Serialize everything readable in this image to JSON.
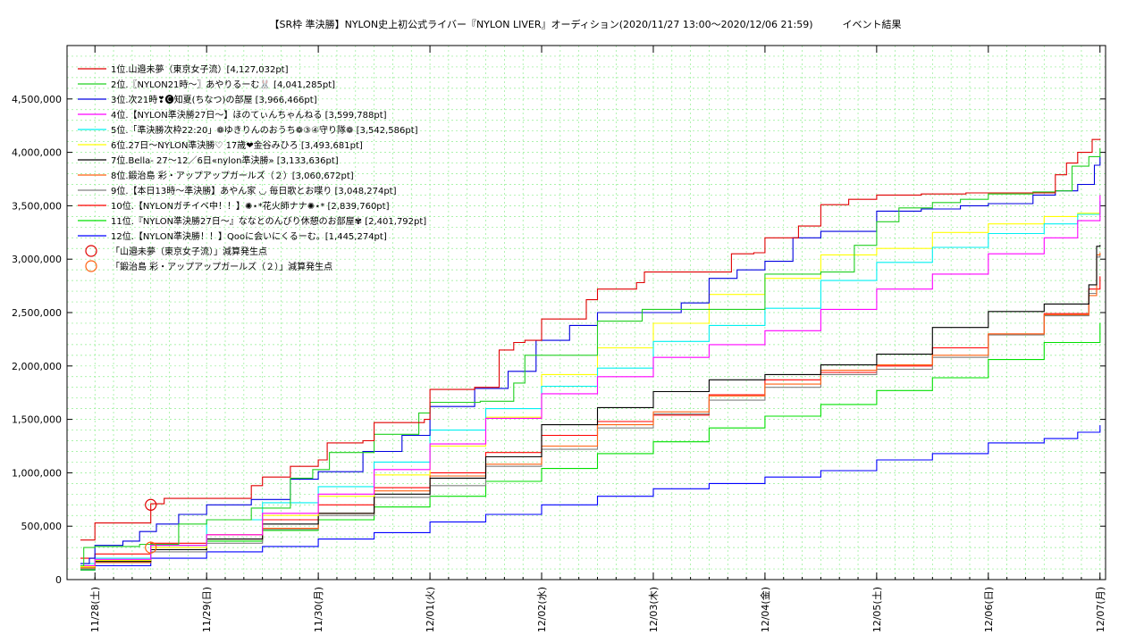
{
  "chart_data": {
    "type": "line",
    "title": "【SR枠 準決勝】NYLON史上初公式ライバー『NYLON LIVER』オーディション(2020/11/27 13:00〜2020/12/06 21:59)　　　イベント結果",
    "xlabel": "",
    "ylabel": "",
    "x_ticks": [
      "11/28(土)",
      "11/29(日)",
      "11/30(月)",
      "12/01(火)",
      "12/02(水)",
      "12/03(木)",
      "12/04(金)",
      "12/05(土)",
      "12/06(日)",
      "12/07(月)"
    ],
    "x_range_days": [
      -0.25,
      9.05
    ],
    "ylim": [
      0,
      5000000
    ],
    "y_ticks": [
      0,
      500000,
      1000000,
      1500000,
      2000000,
      2500000,
      3000000,
      3500000,
      4000000,
      4500000
    ],
    "y_tick_labels": [
      "0",
      "500,000",
      "1,000,000",
      "1,500,000",
      "2,000,000",
      "2,500,000",
      "3,000,000",
      "3,500,000",
      "4,000,000",
      "4,500,000"
    ],
    "grid": true,
    "legend_position": "top-left",
    "x_unit_note": "x values are days since 11/28 00:00",
    "series": [
      {
        "name": "1位.山邉未夢（東京女子流）[4,127,032pt]",
        "color": "#e00000",
        "x": [
          -0.13,
          -0.05,
          0.0,
          0.35,
          0.5,
          0.62,
          1.0,
          1.3,
          1.4,
          1.5,
          1.75,
          2.0,
          2.08,
          2.4,
          2.5,
          2.95,
          3.0,
          3.25,
          3.4,
          3.62,
          3.75,
          3.85,
          4.0,
          4.4,
          4.5,
          4.6,
          4.85,
          4.92,
          5.5,
          5.7,
          5.9,
          6.0,
          6.3,
          6.5,
          6.75,
          7.0,
          7.4,
          7.8,
          8.0,
          8.4,
          8.6,
          8.7,
          8.8,
          8.93,
          9.0
        ],
        "y": [
          370000,
          370000,
          530000,
          530000,
          710000,
          760000,
          760000,
          760000,
          880000,
          960000,
          1060000,
          1120000,
          1280000,
          1300000,
          1470000,
          1500000,
          1780000,
          1780000,
          1800000,
          2150000,
          2220000,
          2240000,
          2440000,
          2620000,
          2720000,
          2720000,
          2780000,
          2880000,
          2880000,
          3050000,
          3060000,
          3200000,
          3310000,
          3510000,
          3560000,
          3600000,
          3610000,
          3620000,
          3620000,
          3620000,
          3790000,
          3900000,
          4000000,
          4120000,
          4127032
        ]
      },
      {
        "name": "2位.〖NYLON21時〜〗あやりるーむ🐰 [4,041,285pt]",
        "color": "#20d020",
        "x": [
          -0.13,
          -0.1,
          0.0,
          0.4,
          0.75,
          1.0,
          1.4,
          1.75,
          1.95,
          2.1,
          2.5,
          2.9,
          3.0,
          3.45,
          3.75,
          3.85,
          4.5,
          4.9,
          5.5,
          6.0,
          6.4,
          6.5,
          6.8,
          7.0,
          7.2,
          7.5,
          7.75,
          8.0,
          8.4,
          8.6,
          8.75,
          8.9,
          9.0
        ],
        "y": [
          130000,
          300000,
          310000,
          330000,
          520000,
          560000,
          670000,
          950000,
          1030000,
          1190000,
          1360000,
          1560000,
          1660000,
          1670000,
          1840000,
          2100000,
          2420000,
          2530000,
          2530000,
          2860000,
          2860000,
          2880000,
          3130000,
          3350000,
          3480000,
          3530000,
          3560000,
          3610000,
          3630000,
          3640000,
          3870000,
          3960000,
          4041285
        ]
      },
      {
        "name": "3位.次21時❣🅒知夏(ちなつ)の部屋 [3,966,466pt]",
        "color": "#0000e0",
        "x": [
          -0.13,
          -0.05,
          0.0,
          0.25,
          0.4,
          0.55,
          0.75,
          1.0,
          1.4,
          1.75,
          2.0,
          2.4,
          2.75,
          3.0,
          3.4,
          3.7,
          3.95,
          4.25,
          4.5,
          4.9,
          5.25,
          5.5,
          5.75,
          6.0,
          6.25,
          6.5,
          7.0,
          7.4,
          7.75,
          8.0,
          8.4,
          8.6,
          8.8,
          8.95,
          9.0
        ],
        "y": [
          150000,
          200000,
          320000,
          360000,
          450000,
          520000,
          610000,
          700000,
          750000,
          940000,
          1010000,
          1200000,
          1350000,
          1620000,
          1790000,
          1950000,
          2240000,
          2380000,
          2500000,
          2500000,
          2590000,
          2820000,
          2900000,
          2980000,
          3200000,
          3260000,
          3450000,
          3470000,
          3500000,
          3520000,
          3600000,
          3640000,
          3700000,
          3880000,
          3966466
        ]
      },
      {
        "name": "4位.【NYLON準決勝27日〜】ほのてぃんちゃんねる [3,599,788pt]",
        "color": "#ff00ff",
        "x": [
          -0.13,
          0.0,
          0.5,
          1.0,
          1.5,
          2.0,
          2.5,
          3.0,
          3.5,
          4.0,
          4.5,
          5.0,
          5.5,
          6.0,
          6.5,
          7.0,
          7.5,
          8.0,
          8.5,
          8.8,
          9.0
        ],
        "y": [
          130000,
          190000,
          320000,
          420000,
          620000,
          800000,
          1030000,
          1270000,
          1510000,
          1740000,
          1900000,
          2080000,
          2200000,
          2330000,
          2530000,
          2720000,
          2860000,
          3050000,
          3200000,
          3360000,
          3599788
        ]
      },
      {
        "name": "5位.「準決勝次枠22:20」❁ゆきりんのおうち❁③④守り隊❁ [3,542,586pt]",
        "color": "#00f0f0",
        "x": [
          -0.13,
          0.0,
          0.5,
          1.0,
          1.5,
          2.0,
          2.5,
          3.0,
          3.5,
          4.0,
          4.5,
          5.0,
          5.5,
          6.0,
          6.5,
          7.0,
          7.5,
          8.0,
          8.5,
          8.8,
          9.0
        ],
        "y": [
          150000,
          200000,
          320000,
          560000,
          720000,
          870000,
          1100000,
          1400000,
          1600000,
          1810000,
          1980000,
          2230000,
          2380000,
          2540000,
          2800000,
          2970000,
          3110000,
          3240000,
          3330000,
          3420000,
          3542586
        ]
      },
      {
        "name": "6位.27日〜NYLON準決勝♡ 17歳❤金谷みひろ [3,493,681pt]",
        "color": "#ffff00",
        "x": [
          -0.13,
          0.0,
          0.5,
          1.0,
          1.5,
          2.0,
          2.5,
          3.0,
          3.5,
          4.0,
          4.5,
          5.0,
          5.5,
          6.0,
          6.5,
          7.0,
          7.5,
          8.0,
          8.5,
          8.8,
          9.0
        ],
        "y": [
          120000,
          180000,
          300000,
          420000,
          600000,
          780000,
          980000,
          1250000,
          1520000,
          1920000,
          2170000,
          2400000,
          2670000,
          2820000,
          3040000,
          3100000,
          3250000,
          3330000,
          3400000,
          3430000,
          3493681
        ]
      },
      {
        "name": "7位.Bella- 27〜12／6日«nylon準決勝» [3,133,636pt]",
        "color": "#000000",
        "x": [
          -0.13,
          0.0,
          0.5,
          1.0,
          1.5,
          2.0,
          2.5,
          3.0,
          3.5,
          4.0,
          4.5,
          5.0,
          5.5,
          6.0,
          6.5,
          7.0,
          7.5,
          8.0,
          8.5,
          8.9,
          8.97,
          9.0
        ],
        "y": [
          120000,
          170000,
          280000,
          380000,
          520000,
          620000,
          800000,
          950000,
          1150000,
          1450000,
          1610000,
          1760000,
          1870000,
          1920000,
          2010000,
          2110000,
          2360000,
          2510000,
          2580000,
          2760000,
          3120000,
          3133636
        ]
      },
      {
        "name": "8位.鍛治島 彩・アップアップガールズ（２）[3,060,672pt]",
        "color": "#ff6010",
        "x": [
          -0.13,
          0.0,
          0.5,
          1.0,
          1.5,
          2.0,
          2.5,
          3.0,
          3.5,
          4.0,
          4.5,
          5.0,
          5.5,
          6.0,
          6.5,
          7.0,
          7.5,
          8.0,
          8.5,
          8.9,
          8.97,
          9.0
        ],
        "y": [
          110000,
          160000,
          300000,
          380000,
          480000,
          620000,
          830000,
          970000,
          1080000,
          1250000,
          1450000,
          1570000,
          1720000,
          1830000,
          1960000,
          2010000,
          2100000,
          2300000,
          2480000,
          2660000,
          3040000,
          3060672
        ]
      },
      {
        "name": "9位.【本日13時〜準決勝】あやん家 ◡ 毎日歌とお喋り [3,048,274pt]",
        "color": "#808080",
        "x": [
          -0.13,
          0.0,
          0.5,
          1.0,
          1.5,
          2.0,
          2.5,
          3.0,
          3.5,
          4.0,
          4.5,
          5.0,
          5.5,
          6.0,
          6.5,
          7.0,
          7.5,
          8.0,
          8.5,
          8.9,
          8.97,
          9.0
        ],
        "y": [
          100000,
          160000,
          260000,
          340000,
          470000,
          600000,
          770000,
          880000,
          1060000,
          1220000,
          1420000,
          1550000,
          1680000,
          1800000,
          1920000,
          1970000,
          2080000,
          2290000,
          2470000,
          2680000,
          3020000,
          3048274
        ]
      },
      {
        "name": "10位.【NYLONガチイベ中！！】✺⋆*花火師ナナ✺⋆* [2,839,760pt]",
        "color": "#ff0000",
        "x": [
          -0.13,
          0.0,
          0.5,
          1.0,
          1.5,
          2.0,
          2.5,
          3.0,
          3.5,
          4.0,
          4.5,
          5.0,
          5.5,
          6.0,
          6.5,
          7.0,
          7.5,
          8.0,
          8.5,
          8.9,
          9.0
        ],
        "y": [
          200000,
          240000,
          340000,
          420000,
          560000,
          700000,
          860000,
          1000000,
          1190000,
          1350000,
          1480000,
          1540000,
          1730000,
          1870000,
          1940000,
          2000000,
          2170000,
          2300000,
          2490000,
          2720000,
          2839760
        ]
      },
      {
        "name": "11位.『NYLON準決勝27日〜』ななとのんびり休憩のお部屋✾ [2,401,792pt]",
        "color": "#00e000",
        "x": [
          -0.13,
          0.0,
          0.5,
          1.0,
          1.5,
          2.0,
          2.5,
          3.0,
          3.5,
          4.0,
          4.5,
          5.0,
          5.5,
          6.0,
          6.5,
          7.0,
          7.5,
          8.0,
          8.5,
          9.0
        ],
        "y": [
          90000,
          160000,
          280000,
          360000,
          460000,
          560000,
          680000,
          780000,
          920000,
          1040000,
          1180000,
          1290000,
          1420000,
          1530000,
          1640000,
          1770000,
          1890000,
          2060000,
          2220000,
          2401792
        ]
      },
      {
        "name": "12位.【NYLON準決勝！！】Qooに会いにくるーむ。[1,445,274pt]",
        "color": "#0000ff",
        "x": [
          -0.13,
          0.0,
          0.5,
          1.0,
          1.5,
          2.0,
          2.5,
          3.0,
          3.5,
          4.0,
          4.5,
          5.0,
          5.5,
          6.0,
          6.5,
          7.0,
          7.5,
          8.0,
          8.5,
          8.8,
          9.0
        ],
        "y": [
          90000,
          130000,
          200000,
          260000,
          310000,
          380000,
          440000,
          540000,
          610000,
          700000,
          780000,
          850000,
          900000,
          960000,
          1020000,
          1120000,
          1180000,
          1280000,
          1320000,
          1380000,
          1445274
        ]
      }
    ],
    "markers": [
      {
        "name": "「山邉未夢（東京女子流）」減算発生点",
        "color": "#e00000",
        "x": 0.5,
        "y": 700000
      },
      {
        "name": "「鍛治島 彩・アップアップガールズ（２）」減算発生点",
        "color": "#ff6010",
        "x": 0.5,
        "y": 300000
      }
    ]
  }
}
